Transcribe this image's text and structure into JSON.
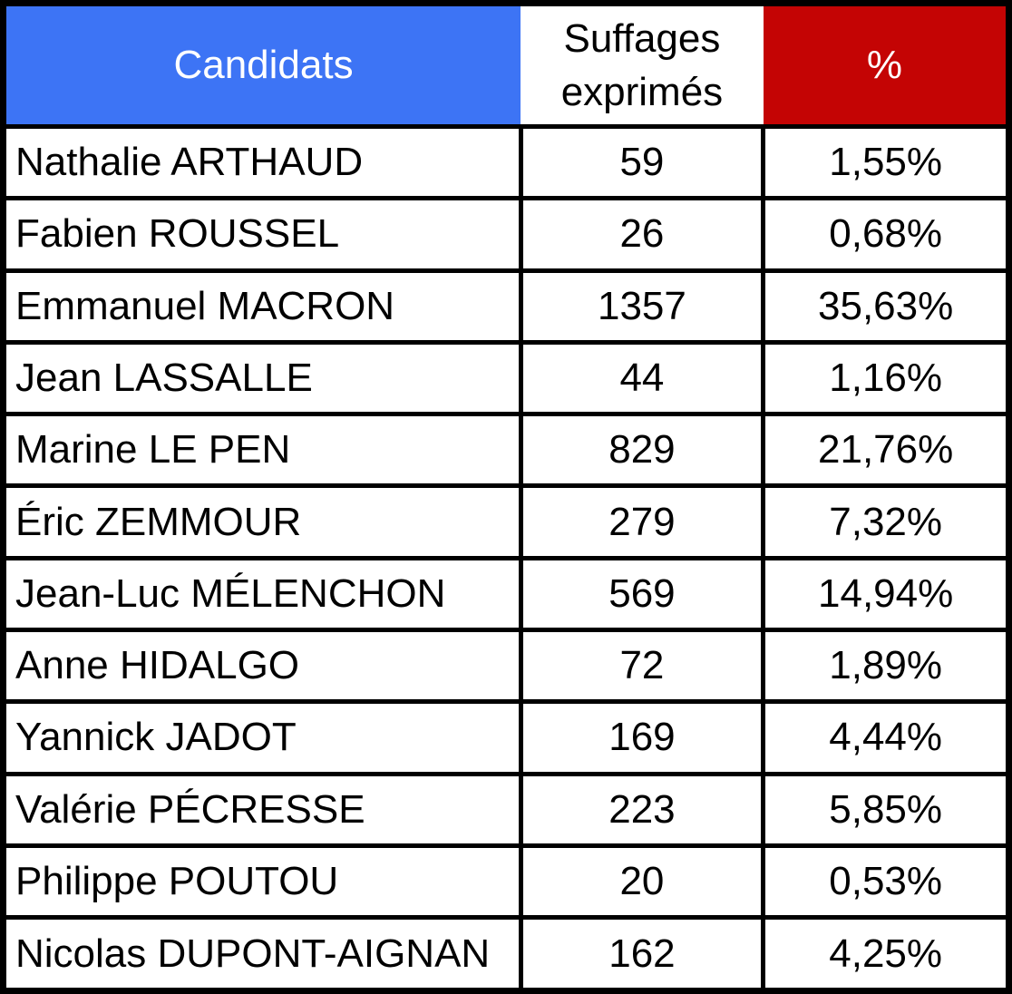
{
  "chart_data": {
    "type": "table",
    "columns": [
      "Candidats",
      "Suffages exprimés",
      "%"
    ],
    "rows": [
      [
        "Nathalie ARTHAUD",
        59,
        "1,55%"
      ],
      [
        "Fabien ROUSSEL",
        26,
        "0,68%"
      ],
      [
        "Emmanuel MACRON",
        1357,
        "35,63%"
      ],
      [
        "Jean LASSALLE",
        44,
        "1,16%"
      ],
      [
        "Marine LE PEN",
        829,
        "21,76%"
      ],
      [
        "Éric ZEMMOUR",
        279,
        "7,32%"
      ],
      [
        "Jean-Luc MÉLENCHON",
        569,
        "14,94%"
      ],
      [
        "Anne HIDALGO",
        72,
        "1,89%"
      ],
      [
        "Yannick JADOT",
        169,
        "4,44%"
      ],
      [
        "Valérie PÉCRESSE",
        223,
        "5,85%"
      ],
      [
        "Philippe POUTOU",
        20,
        "0,53%"
      ],
      [
        "Nicolas DUPONT-AIGNAN",
        162,
        "4,25%"
      ]
    ]
  },
  "header": {
    "candidats": "Candidats",
    "suffrages": "Suffages exprimés",
    "percent": "%"
  },
  "rows": [
    {
      "candidate": "Nathalie ARTHAUD",
      "votes": "59",
      "percent": "1,55%"
    },
    {
      "candidate": "Fabien ROUSSEL",
      "votes": "26",
      "percent": "0,68%"
    },
    {
      "candidate": "Emmanuel MACRON",
      "votes": "1357",
      "percent": "35,63%"
    },
    {
      "candidate": "Jean LASSALLE",
      "votes": "44",
      "percent": "1,16%"
    },
    {
      "candidate": "Marine LE PEN",
      "votes": "829",
      "percent": "21,76%"
    },
    {
      "candidate": "Éric ZEMMOUR",
      "votes": "279",
      "percent": "7,32%"
    },
    {
      "candidate": "Jean-Luc MÉLENCHON",
      "votes": "569",
      "percent": "14,94%"
    },
    {
      "candidate": "Anne HIDALGO",
      "votes": "72",
      "percent": "1,89%"
    },
    {
      "candidate": "Yannick JADOT",
      "votes": "169",
      "percent": "4,44%"
    },
    {
      "candidate": "Valérie PÉCRESSE",
      "votes": "223",
      "percent": "5,85%"
    },
    {
      "candidate": "Philippe POUTOU",
      "votes": "20",
      "percent": "0,53%"
    },
    {
      "candidate": "Nicolas DUPONT-AIGNAN",
      "votes": "162",
      "percent": "4,25%"
    }
  ],
  "colors": {
    "header_blue": "#3D74F5",
    "header_red": "#C40404",
    "border_black": "#000000",
    "header_text_light": "#FFFFFF",
    "text_dark": "#000000"
  }
}
